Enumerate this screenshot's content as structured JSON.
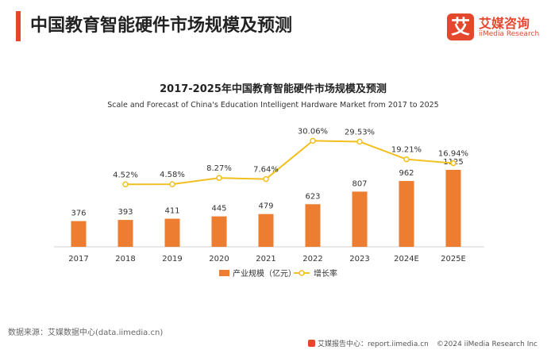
{
  "header": {
    "title": "中国教育智能硬件市场规模及预测"
  },
  "brand": {
    "mark": "艾",
    "name_cn": "艾媒咨询",
    "name_en": "iiMedia Research"
  },
  "colors": {
    "accent": "#e5472d",
    "bar": "#ed7d31",
    "line": "#f2c01e"
  },
  "chart_data": {
    "type": "bar",
    "title": "2017-2025年中国教育智能硬件市场规模及预测",
    "subtitle": "Scale and Forecast of China's Education Intelligent Hardware Market from 2017 to 2025",
    "categories": [
      "2017",
      "2018",
      "2019",
      "2020",
      "2021",
      "2022",
      "2023",
      "2024E",
      "2025E"
    ],
    "series": [
      {
        "name": "产业规模（亿元）",
        "type": "bar",
        "values": [
          376,
          393,
          411,
          445,
          479,
          623,
          807,
          962,
          1125
        ],
        "labels": [
          "376",
          "393",
          "411",
          "445",
          "479",
          "623",
          "807",
          "962",
          "1125"
        ]
      },
      {
        "name": "增长率",
        "type": "line",
        "values": [
          null,
          4.52,
          4.58,
          8.27,
          7.64,
          30.06,
          29.53,
          19.21,
          16.94
        ],
        "labels": [
          "",
          "4.52%",
          "4.58%",
          "8.27%",
          "7.64%",
          "30.06%",
          "29.53%",
          "19.21%",
          "16.94%"
        ]
      }
    ],
    "legend_position": "bottom",
    "grid": false
  },
  "footer": {
    "source": "数据来源：艾媒数据中心(data.iimedia.cn)",
    "report_site": "艾媒报告中心：report.iimedia.cn",
    "copyright": "©2024  iiMedia Research  Inc"
  }
}
